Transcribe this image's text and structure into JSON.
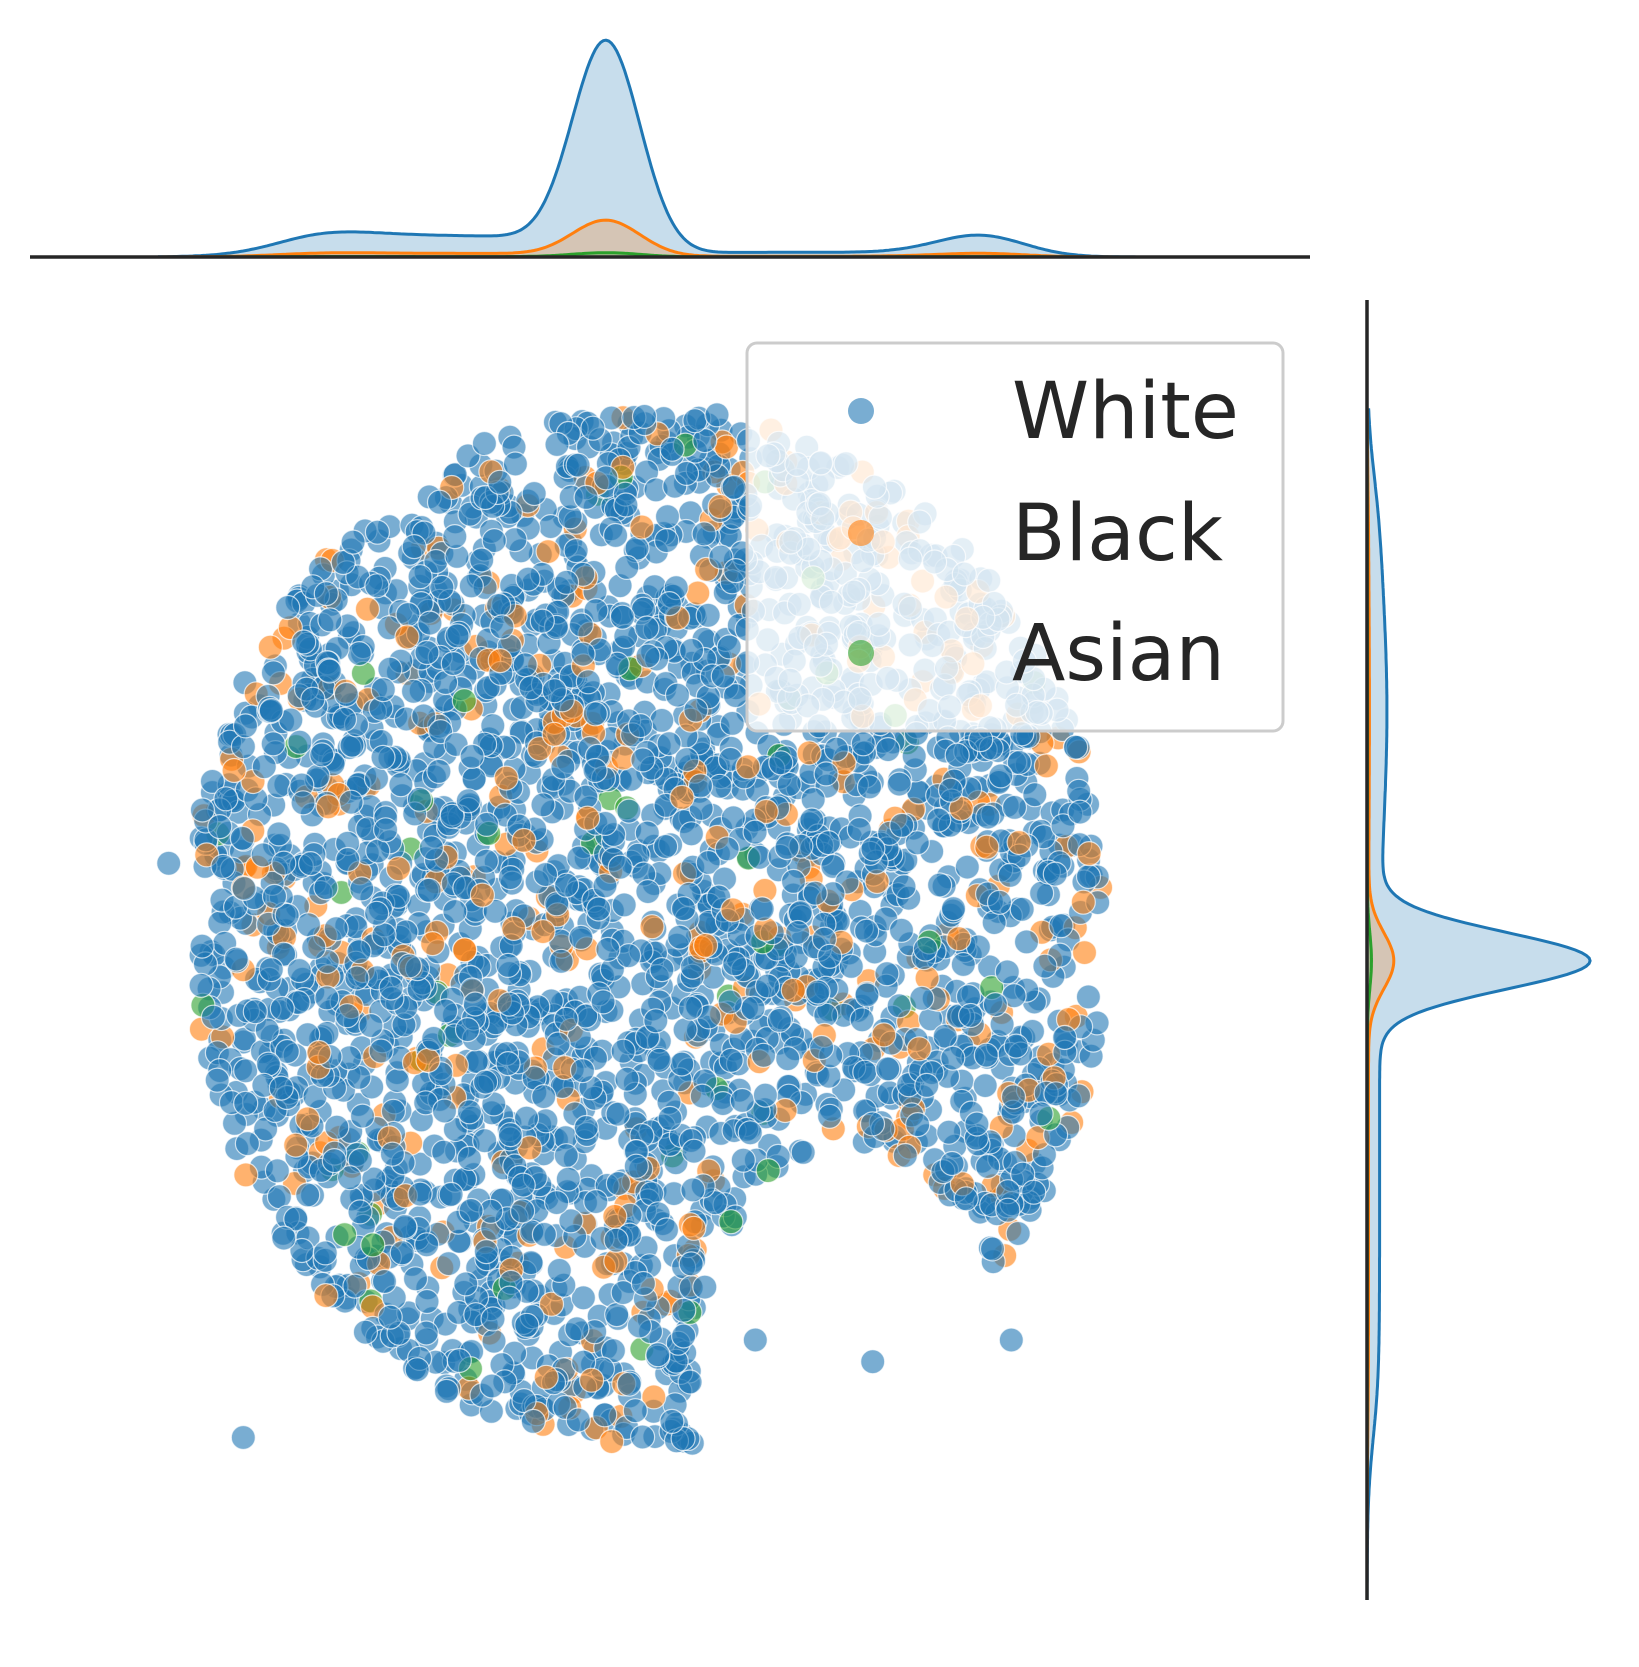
{
  "chart_data": {
    "type": "scatter",
    "title": "",
    "xlabel": "",
    "ylabel": "",
    "xlim": [
      -60,
      60
    ],
    "ylim": [
      -60,
      60
    ],
    "grid": false,
    "axes_visible": false,
    "legend": {
      "placement": "top-right",
      "entries": [
        "White",
        "Black",
        "Asian"
      ]
    },
    "marker_opacity": 0.6,
    "series": [
      {
        "name": "White",
        "color": "#1f77b4",
        "approx_points": 9000
      },
      {
        "name": "Black",
        "color": "#ff7f0e",
        "approx_points": 900
      },
      {
        "name": "Asian",
        "color": "#2ca02c",
        "approx_points": 60
      }
    ],
    "point_cloud_shape": {
      "description": "dome / cap-shaped cloud",
      "x_range": [
        -44,
        42
      ],
      "y_range": [
        -52,
        50
      ],
      "outliers": [
        [
          -47,
          8
        ],
        [
          -40,
          -45
        ],
        [
          8,
          -36
        ],
        [
          19,
          -38
        ],
        [
          32,
          -36
        ]
      ]
    },
    "marginals": {
      "top": {
        "kind": "kde",
        "axis": "x",
        "peak_at_x": -6,
        "secondary_bumps_x": [
          -33,
          29
        ],
        "series_peaks_relative": {
          "White": 1.0,
          "Black": 0.17,
          "Asian": 0.02
        }
      },
      "right": {
        "kind": "kde",
        "axis": "y",
        "peak_at_y": -1,
        "series_peaks_relative": {
          "White": 1.0,
          "Black": 0.12,
          "Asian": 0.02
        }
      }
    }
  }
}
